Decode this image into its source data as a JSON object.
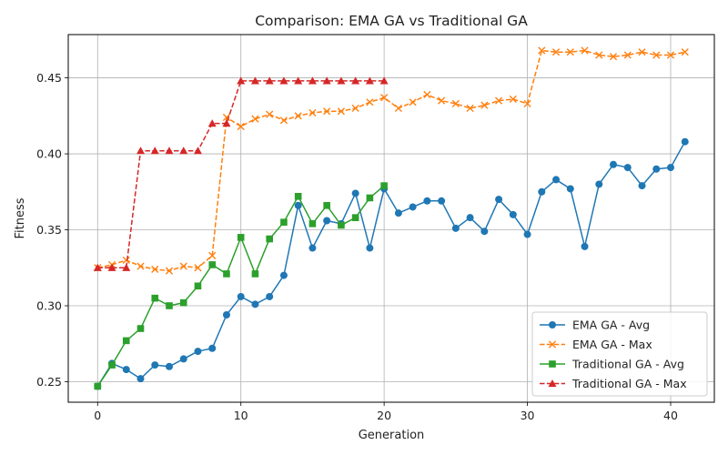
{
  "chart_data": {
    "type": "line",
    "title": "Comparison: EMA GA vs Traditional GA",
    "xlabel": "Generation",
    "ylabel": "Fitness",
    "xlim": [
      -2.05,
      43.05
    ],
    "ylim": [
      0.2365,
      0.4785
    ],
    "xticks": [
      0,
      10,
      20,
      30,
      40
    ],
    "yticks": [
      0.25,
      0.3,
      0.35,
      0.4,
      0.45
    ],
    "ytick_labels": [
      "0.25",
      "0.30",
      "0.35",
      "0.40",
      "0.45"
    ],
    "grid": true,
    "legend_position": "lower-right",
    "series": [
      {
        "name": "EMA GA - Avg",
        "color": "#1f77b4",
        "linestyle": "solid",
        "marker": "circle",
        "x": [
          0,
          1,
          2,
          3,
          4,
          5,
          6,
          7,
          8,
          9,
          10,
          11,
          12,
          13,
          14,
          15,
          16,
          17,
          18,
          19,
          20,
          21,
          22,
          23,
          24,
          25,
          26,
          27,
          28,
          29,
          30,
          31,
          32,
          33,
          34,
          35,
          36,
          37,
          38,
          39,
          40,
          41
        ],
        "y": [
          0.247,
          0.262,
          0.258,
          0.252,
          0.261,
          0.26,
          0.265,
          0.27,
          0.272,
          0.294,
          0.306,
          0.301,
          0.306,
          0.32,
          0.366,
          0.338,
          0.356,
          0.354,
          0.374,
          0.338,
          0.377,
          0.361,
          0.365,
          0.369,
          0.369,
          0.351,
          0.358,
          0.349,
          0.37,
          0.36,
          0.347,
          0.375,
          0.383,
          0.377,
          0.339,
          0.38,
          0.393,
          0.391,
          0.379,
          0.39,
          0.391,
          0.408
        ]
      },
      {
        "name": "EMA GA - Max",
        "color": "#ff7f0e",
        "linestyle": "dashed",
        "marker": "x",
        "x": [
          0,
          1,
          2,
          3,
          4,
          5,
          6,
          7,
          8,
          9,
          10,
          11,
          12,
          13,
          14,
          15,
          16,
          17,
          18,
          19,
          20,
          21,
          22,
          23,
          24,
          25,
          26,
          27,
          28,
          29,
          30,
          31,
          32,
          33,
          34,
          35,
          36,
          37,
          38,
          39,
          40,
          41
        ],
        "y": [
          0.325,
          0.327,
          0.33,
          0.326,
          0.324,
          0.323,
          0.326,
          0.325,
          0.333,
          0.424,
          0.418,
          0.423,
          0.426,
          0.422,
          0.425,
          0.427,
          0.428,
          0.428,
          0.43,
          0.434,
          0.437,
          0.43,
          0.434,
          0.439,
          0.435,
          0.433,
          0.43,
          0.432,
          0.435,
          0.436,
          0.433,
          0.468,
          0.467,
          0.467,
          0.468,
          0.465,
          0.464,
          0.465,
          0.467,
          0.465,
          0.465,
          0.467
        ]
      },
      {
        "name": "Traditional GA - Avg",
        "color": "#2ca02c",
        "linestyle": "solid",
        "marker": "square",
        "x": [
          0,
          1,
          2,
          3,
          4,
          5,
          6,
          7,
          8,
          9,
          10,
          11,
          12,
          13,
          14,
          15,
          16,
          17,
          18,
          19,
          20
        ],
        "y": [
          0.247,
          0.261,
          0.277,
          0.285,
          0.305,
          0.3,
          0.302,
          0.313,
          0.327,
          0.321,
          0.345,
          0.321,
          0.344,
          0.355,
          0.372,
          0.354,
          0.366,
          0.353,
          0.358,
          0.371,
          0.379
        ]
      },
      {
        "name": "Traditional GA - Max",
        "color": "#d62728",
        "linestyle": "dashed",
        "marker": "triangle",
        "x": [
          0,
          1,
          2,
          3,
          4,
          5,
          6,
          7,
          8,
          9,
          10,
          11,
          12,
          13,
          14,
          15,
          16,
          17,
          18,
          19,
          20
        ],
        "y": [
          0.325,
          0.325,
          0.325,
          0.402,
          0.402,
          0.402,
          0.402,
          0.402,
          0.42,
          0.42,
          0.448,
          0.448,
          0.448,
          0.448,
          0.448,
          0.448,
          0.448,
          0.448,
          0.448,
          0.448,
          0.448
        ]
      }
    ]
  }
}
